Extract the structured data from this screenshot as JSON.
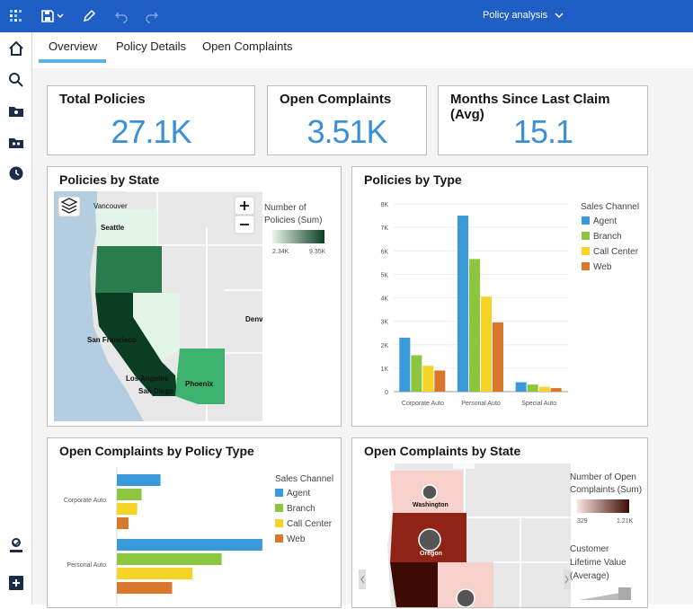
{
  "app": {
    "title": "Policy analysis"
  },
  "tabs": [
    "Overview",
    "Policy Details",
    "Open Complaints"
  ],
  "kpis": [
    {
      "title": "Total Policies",
      "value": "27.1K"
    },
    {
      "title": "Open Complaints",
      "value": "3.51K"
    },
    {
      "title": "Months Since Last Claim (Avg)",
      "value": "15.1"
    }
  ],
  "policies_by_state": {
    "title": "Policies by State",
    "legend_title": [
      "Number of",
      "Policies (Sum)"
    ],
    "legend_min": "2.34K",
    "legend_max": "9.35K",
    "cities": [
      "Vancouver",
      "Seattle",
      "San Francisco",
      "Los Angeles",
      "San Diego",
      "Phoenix",
      "Denv"
    ]
  },
  "complaints_by_state": {
    "title": "Open Complaints by State",
    "legend_title": [
      "Number of Open",
      "Complaints (Sum)"
    ],
    "legend_min": "329",
    "legend_max": "1.21K",
    "size_legend_title": [
      "Customer",
      "Lifetime Value",
      "(Average)"
    ],
    "labels": [
      "Washington",
      "Oregon"
    ]
  },
  "colors": {
    "Agent": "#3a9ad9",
    "Branch": "#8cc63f",
    "Call Center": "#f5d327",
    "Web": "#d9782d"
  },
  "chart_data": [
    {
      "type": "bar",
      "title": "Policies by Type",
      "categories": [
        "Corporate Auto",
        "Personal Auto",
        "Special Auto"
      ],
      "legend_title": "Sales Channel",
      "series": [
        {
          "name": "Agent",
          "values": [
            2300,
            7500,
            400
          ]
        },
        {
          "name": "Branch",
          "values": [
            1550,
            5650,
            300
          ]
        },
        {
          "name": "Call Center",
          "values": [
            1100,
            4050,
            200
          ]
        },
        {
          "name": "Web",
          "values": [
            900,
            2950,
            150
          ]
        }
      ],
      "yticks": [
        "0",
        "1K",
        "2K",
        "3K",
        "4K",
        "5K",
        "6K",
        "7K",
        "8K"
      ],
      "ylim": [
        0,
        8000
      ]
    },
    {
      "type": "bar",
      "orientation": "horizontal",
      "title": "Open Complaints by Policy Type",
      "categories": [
        "Corporate Auto",
        "Personal Auto"
      ],
      "legend_title": "Sales Channel",
      "series": [
        {
          "name": "Agent",
          "values": [
            300,
            1000
          ]
        },
        {
          "name": "Branch",
          "values": [
            170,
            720
          ]
        },
        {
          "name": "Call Center",
          "values": [
            140,
            520
          ]
        },
        {
          "name": "Web",
          "values": [
            80,
            380
          ]
        }
      ]
    }
  ]
}
